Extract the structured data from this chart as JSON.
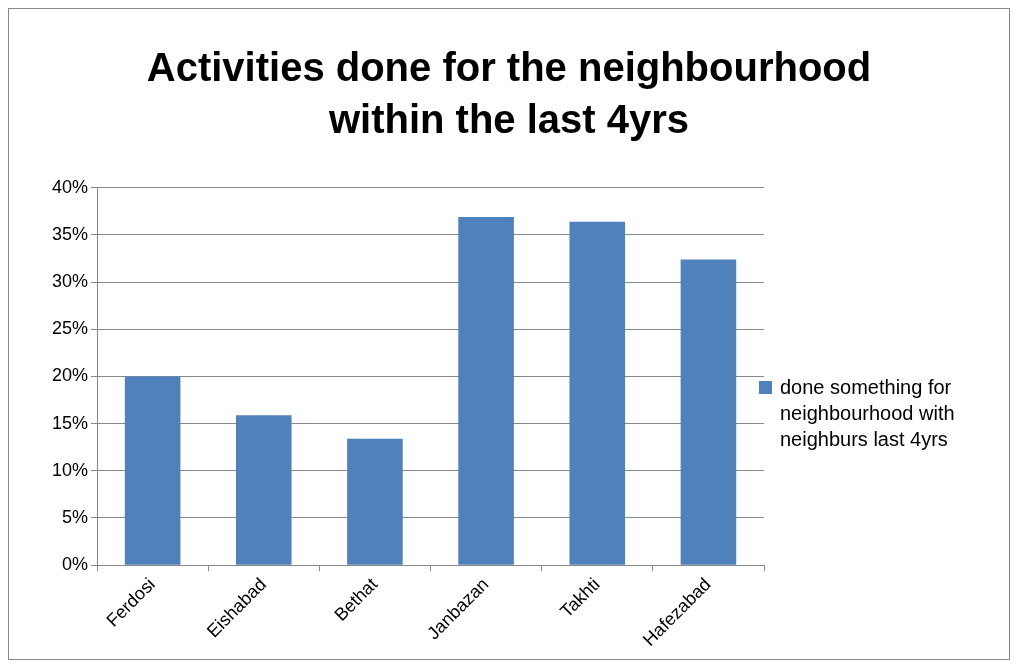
{
  "chart_data": {
    "type": "bar",
    "title": "Activities done for the neighbourhood within the last 4yrs",
    "categories": [
      "Ferdosi",
      "Eishabad",
      "Bethat",
      "Janbazan",
      "Takhti",
      "Hafezabad"
    ],
    "series": [
      {
        "name": "done something for neighbourhood with neighburs last 4yrs",
        "color": "#4f81bd",
        "values": [
          20,
          15.9,
          13.4,
          36.9,
          36.4,
          32.4
        ]
      }
    ],
    "ylim": [
      0,
      40
    ],
    "yticks": [
      {
        "value": 0,
        "label": "0%"
      },
      {
        "value": 5,
        "label": "5%"
      },
      {
        "value": 10,
        "label": "10%"
      },
      {
        "value": 15,
        "label": "15%"
      },
      {
        "value": 20,
        "label": "20%"
      },
      {
        "value": 25,
        "label": "25%"
      },
      {
        "value": 30,
        "label": "30%"
      },
      {
        "value": 35,
        "label": "35%"
      },
      {
        "value": 40,
        "label": "40%"
      }
    ],
    "grid": "y",
    "legend": "right"
  }
}
